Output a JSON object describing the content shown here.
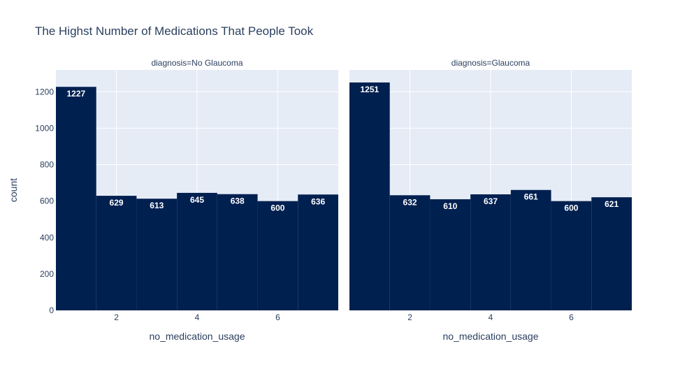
{
  "chart_data": {
    "type": "bar",
    "title": "The Highst Number of Medications That People Took",
    "ylabel": "count",
    "ylim": [
      0,
      1320
    ],
    "y_ticks": [
      0,
      200,
      400,
      600,
      800,
      1000,
      1200
    ],
    "x_ticks": [
      2,
      4,
      6
    ],
    "xlim": [
      0.5,
      7.5
    ],
    "bar_color": "#002050",
    "plot_bg": "#e5ecf6",
    "grid": true,
    "panels": [
      {
        "facet_title": "diagnosis=No Glaucoma",
        "xlabel": "no_medication_usage",
        "bins": [
          {
            "x": 1,
            "count": 1227
          },
          {
            "x": 2,
            "count": 629
          },
          {
            "x": 3,
            "count": 613
          },
          {
            "x": 4,
            "count": 645
          },
          {
            "x": 5,
            "count": 638
          },
          {
            "x": 6,
            "count": 600
          },
          {
            "x": 7,
            "count": 636
          }
        ]
      },
      {
        "facet_title": "diagnosis=Glaucoma",
        "xlabel": "no_medication_usage",
        "bins": [
          {
            "x": 1,
            "count": 1251
          },
          {
            "x": 2,
            "count": 632
          },
          {
            "x": 3,
            "count": 610
          },
          {
            "x": 4,
            "count": 637
          },
          {
            "x": 5,
            "count": 661
          },
          {
            "x": 6,
            "count": 600
          },
          {
            "x": 7,
            "count": 621
          }
        ]
      }
    ]
  }
}
